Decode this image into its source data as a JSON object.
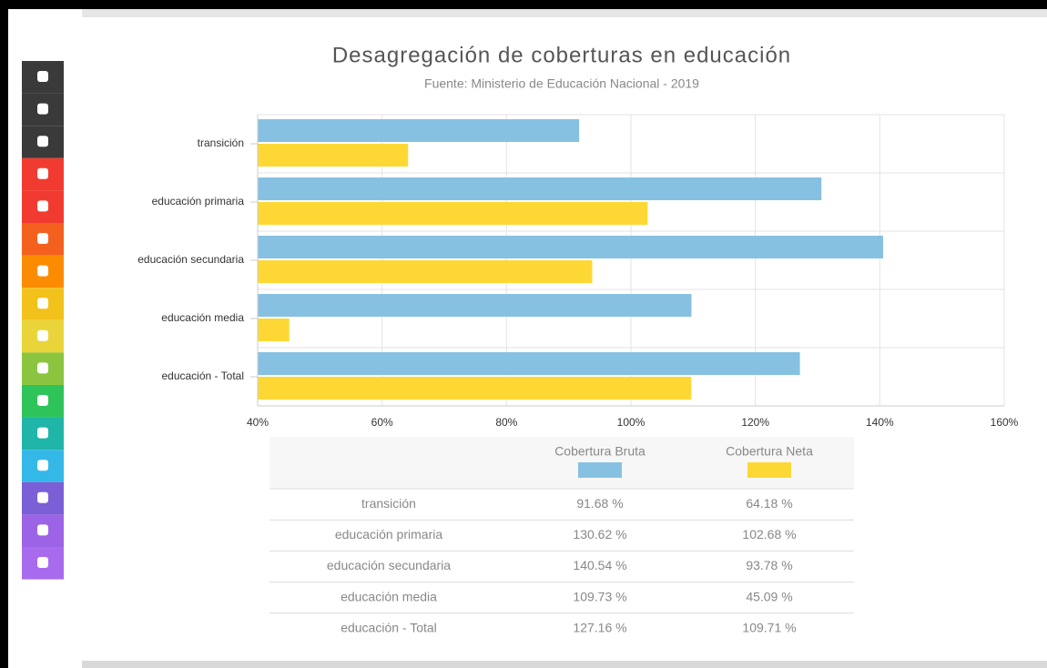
{
  "chart_data": {
    "type": "bar",
    "orientation": "horizontal",
    "title": "Desagregación de coberturas en educación",
    "subtitle": "Fuente: Ministerio de Educación Nacional - 2019",
    "categories": [
      "transición",
      "educación primaria",
      "educación secundaria",
      "educación media",
      "educación - Total"
    ],
    "series": [
      {
        "name": "Cobertura Bruta",
        "color": "#86c1e2",
        "values": [
          91.68,
          130.62,
          140.54,
          109.73,
          127.16
        ],
        "value_labels": [
          "91.68 %",
          "130.62 %",
          "140.54 %",
          "109.73 %",
          "127.16 %"
        ]
      },
      {
        "name": "Cobertura Neta",
        "color": "#fdd835",
        "values": [
          64.18,
          102.68,
          93.78,
          45.09,
          109.71
        ],
        "value_labels": [
          "64.18 %",
          "102.68 %",
          "93.78 %",
          "45.09 %",
          "109.71 %"
        ]
      }
    ],
    "xlim": [
      40,
      160
    ],
    "xticks": [
      {
        "value": 40,
        "label": "40%"
      },
      {
        "value": 60,
        "label": "60%"
      },
      {
        "value": 80,
        "label": "80%"
      },
      {
        "value": 100,
        "label": "100%"
      },
      {
        "value": 120,
        "label": "120%"
      },
      {
        "value": 140,
        "label": "140%"
      },
      {
        "value": 160,
        "label": "160%"
      }
    ],
    "grid": true
  }
}
